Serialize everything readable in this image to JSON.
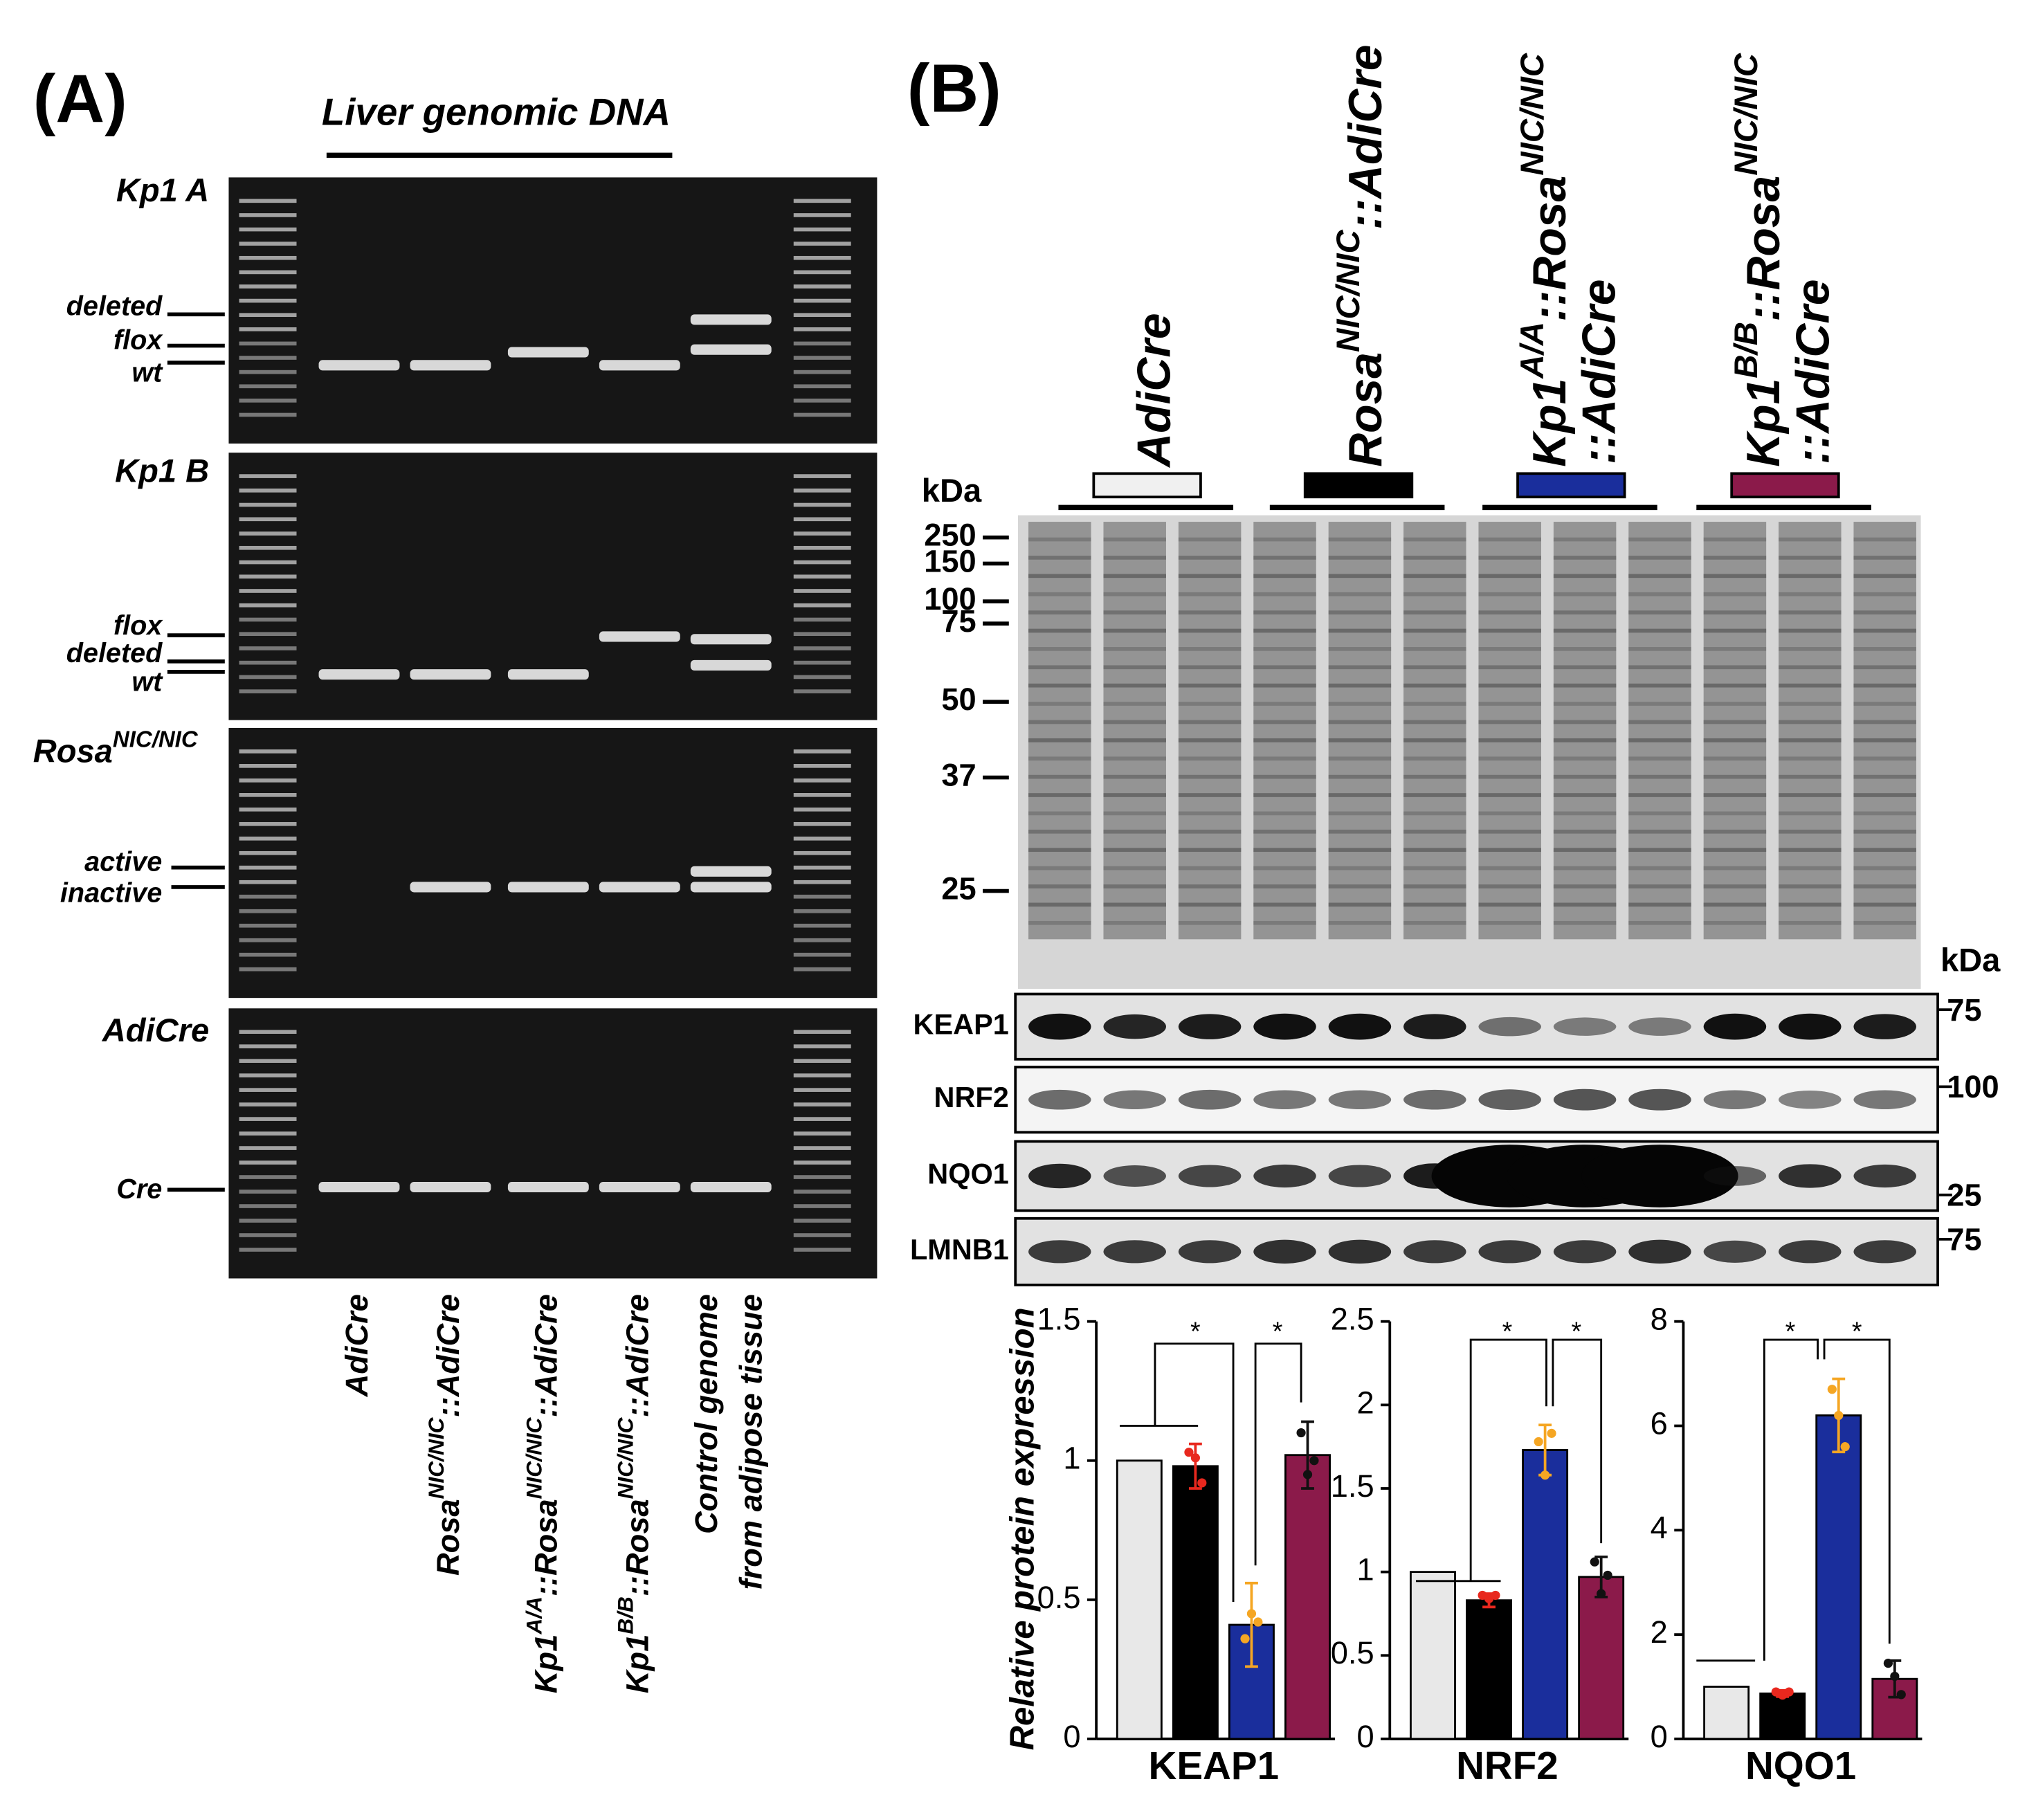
{
  "panel_a": {
    "label": "(A)",
    "title": "Liver genomic DNA",
    "gels": [
      {
        "name": [
          {
            "text": "Kp1 A"
          }
        ],
        "bands": [
          "deleted",
          "flox",
          "wt"
        ]
      },
      {
        "name": [
          {
            "text": "Kp1 B"
          }
        ],
        "bands": [
          "flox",
          "deleted",
          "wt"
        ]
      },
      {
        "name": [
          {
            "text": "Rosa"
          },
          {
            "text": "NIC/NIC",
            "sup": true
          }
        ],
        "bands": [
          "active",
          "inactive"
        ]
      },
      {
        "name": [
          {
            "text": "AdiCre"
          }
        ],
        "bands": [
          "Cre"
        ]
      }
    ],
    "lanes": [
      [
        [
          {
            "text": "AdiCre"
          }
        ]
      ],
      [
        [
          {
            "text": "Rosa"
          },
          {
            "text": "NIC/NIC",
            "sup": true
          },
          {
            "text": "::AdiCre"
          }
        ]
      ],
      [
        [
          {
            "text": "Kp1"
          },
          {
            "text": "A/A",
            "sup": true
          },
          {
            "text": "::Rosa"
          },
          {
            "text": "NIC/NIC",
            "sup": true
          },
          {
            "text": "::AdiCre"
          }
        ]
      ],
      [
        [
          {
            "text": "Kp1"
          },
          {
            "text": "B/B",
            "sup": true
          },
          {
            "text": "::Rosa"
          },
          {
            "text": "NIC/NIC",
            "sup": true
          },
          {
            "text": "::AdiCre"
          }
        ]
      ],
      [
        [
          {
            "text": "Control genome"
          }
        ],
        [
          {
            "text": "from adipose tissue"
          }
        ]
      ]
    ]
  },
  "panel_b": {
    "label": "(B)",
    "groups": [
      {
        "lines": [
          [
            {
              "text": "AdiCre"
            }
          ]
        ],
        "color": "#f0f0f0"
      },
      {
        "lines": [
          [
            {
              "text": "Rosa"
            },
            {
              "text": "NIC/NIC",
              "sup": true
            },
            {
              "text": "::AdiCre"
            }
          ]
        ],
        "color": "#000000"
      },
      {
        "lines": [
          [
            {
              "text": "Kp1"
            },
            {
              "text": "A/A",
              "sup": true
            },
            {
              "text": "::Rosa"
            },
            {
              "text": "NIC/NIC",
              "sup": true
            }
          ],
          [
            {
              "text": "::AdiCre"
            }
          ]
        ],
        "color": "#1a2e9c"
      },
      {
        "lines": [
          [
            {
              "text": "Kp1"
            },
            {
              "text": "B/B",
              "sup": true
            },
            {
              "text": "::Rosa"
            },
            {
              "text": "NIC/NIC",
              "sup": true
            }
          ],
          [
            {
              "text": "::AdiCre"
            }
          ]
        ],
        "color": "#8b1a4a"
      }
    ],
    "kda_left": "kDa",
    "markers": [
      250,
      150,
      100,
      75,
      50,
      37,
      25
    ],
    "kda_right": "kDa",
    "blots": [
      {
        "name": "KEAP1",
        "kda": 75
      },
      {
        "name": "NRF2",
        "kda": 100
      },
      {
        "name": "NQO1",
        "kda": 25
      },
      {
        "name": "LMNB1",
        "kda": 75
      }
    ]
  },
  "chart_data": [
    {
      "type": "bar",
      "ylabel": "Relative protein expression",
      "xlabel": "KEAP1",
      "categories": [
        null,
        null,
        null,
        null
      ],
      "values": [
        1,
        0.98,
        0.41,
        1.02
      ],
      "errors": [
        null,
        0.08,
        0.15,
        0.12
      ],
      "points": [
        null,
        [
          1.03,
          1.01,
          0.92
        ],
        [
          0.36,
          0.45,
          0.42
        ],
        [
          1.1,
          0.95,
          1.0
        ]
      ],
      "colors": [
        "#e8e8e8",
        "#000000",
        "#1a2e9c",
        "#8b1a4a"
      ],
      "point_colors": [
        null,
        "#e8281e",
        "#f5a623",
        "#111111"
      ],
      "ylim": [
        0,
        1.5
      ],
      "yticks": [
        0,
        0.5,
        1,
        1.5
      ],
      "annotations": [
        "*",
        "*"
      ]
    },
    {
      "type": "bar",
      "xlabel": "NRF2",
      "categories": [
        null,
        null,
        null,
        null
      ],
      "values": [
        1,
        0.83,
        1.73,
        0.97
      ],
      "errors": [
        null,
        0.04,
        0.15,
        0.12
      ],
      "points": [
        null,
        [
          0.86,
          0.84,
          0.86
        ],
        [
          1.78,
          1.58,
          1.83
        ],
        [
          1.06,
          0.87,
          0.98
        ]
      ],
      "colors": [
        "#e8e8e8",
        "#000000",
        "#1a2e9c",
        "#8b1a4a"
      ],
      "point_colors": [
        null,
        "#e8281e",
        "#f5a623",
        "#111111"
      ],
      "ylim": [
        0,
        2.5
      ],
      "yticks": [
        0,
        0.5,
        1,
        1.5,
        2,
        2.5
      ],
      "annotations": [
        "*",
        "*"
      ]
    },
    {
      "type": "bar",
      "xlabel": "NQO1",
      "categories": [
        null,
        null,
        null,
        null
      ],
      "values": [
        1,
        0.87,
        6.2,
        1.15
      ],
      "errors": [
        null,
        0.06,
        0.7,
        0.35
      ],
      "points": [
        null,
        [
          0.9,
          0.84,
          0.9
        ],
        [
          6.7,
          6.2,
          5.6
        ],
        [
          1.45,
          1.2,
          0.85
        ]
      ],
      "colors": [
        "#e8e8e8",
        "#000000",
        "#1a2e9c",
        "#8b1a4a"
      ],
      "point_colors": [
        null,
        "#e8281e",
        "#f5a623",
        "#111111"
      ],
      "ylim": [
        0,
        8
      ],
      "yticks": [
        0,
        2,
        4,
        6,
        8
      ],
      "annotations": [
        "*",
        "*"
      ]
    }
  ]
}
